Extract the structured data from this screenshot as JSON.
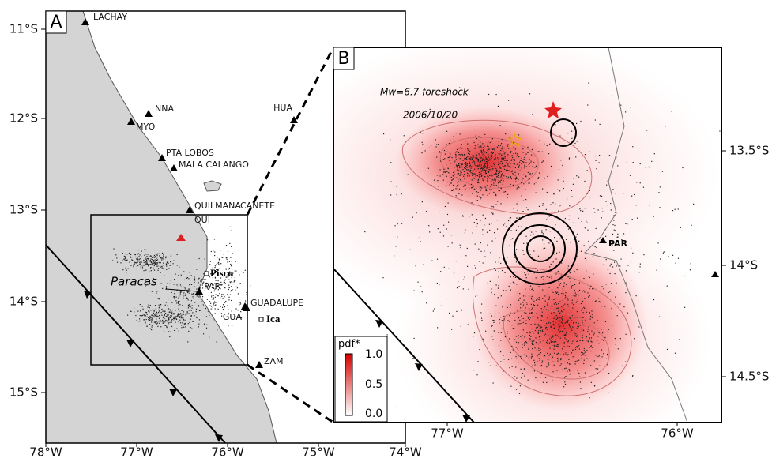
{
  "panel_a": {
    "label": "A",
    "lat_ticks": [
      "11°S",
      "12°S",
      "13°S",
      "14°S",
      "15°S"
    ],
    "lon_ticks": [
      "78°W",
      "77°W",
      "76°W",
      "75°W",
      "74°W"
    ],
    "stations": [
      "LACHAY",
      "NNA",
      "MYO",
      "PTA LOBOS",
      "MALA CALANGO",
      "QUILMANA",
      "CANETE",
      "QUI",
      "PAR",
      "GUADALUPE",
      "GUA",
      "ZAM",
      "HUA"
    ],
    "places": [
      "Pisco",
      "Ica",
      "Paracas"
    ]
  },
  "panel_b": {
    "label": "B",
    "annotations": [
      "Mw=6.7 foreshock",
      "2006/10/20"
    ],
    "station": "PAR",
    "lat_ticks": [
      "13.5°S",
      "14°S",
      "14.5°S"
    ],
    "lon_ticks": [
      "77°W",
      "76°W"
    ],
    "colorbar": {
      "title": "pdf*",
      "ticks": [
        "1.0",
        "0.5",
        "0.0"
      ]
    }
  }
}
